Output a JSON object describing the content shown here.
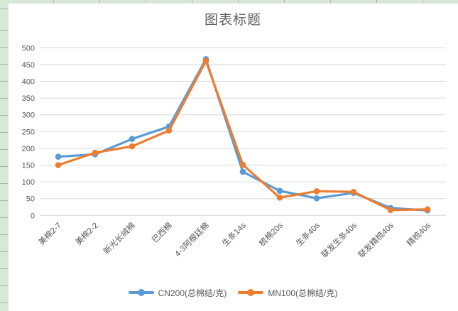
{
  "title": "图表标题",
  "chart_data": {
    "type": "line",
    "title": "图表标题",
    "categories": [
      "美棉2-7",
      "美棉2-2",
      "新光长绒棉",
      "巴西棉",
      "4-3阿根廷棉",
      "生条14s",
      "梳棉20s",
      "生条40s",
      "联发生条40s",
      "联发精梳40s",
      "精梳40s"
    ],
    "series": [
      {
        "name": "CN200(总棉结/克)",
        "color": "#5B9BD5",
        "values": [
          175,
          182,
          228,
          265,
          466,
          130,
          73,
          51,
          67,
          22,
          15
        ]
      },
      {
        "name": "MN100(总棉结/克)",
        "color": "#ED7D31",
        "values": [
          150,
          187,
          206,
          253,
          461,
          151,
          53,
          72,
          70,
          16,
          18
        ]
      }
    ],
    "ylim": [
      0,
      500
    ],
    "ytick_step": 50,
    "grid": true,
    "gridline_color": "#d9d9d9",
    "axis_label_color": "#595959",
    "x_label_rotation": -45,
    "legend_position": "bottom"
  }
}
